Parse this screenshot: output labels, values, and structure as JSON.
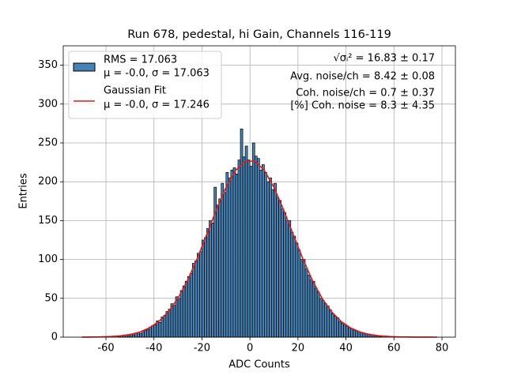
{
  "chart_data": {
    "type": "histogram",
    "title": "Run 678, pedestal, hi Gain, Channels 116-119",
    "xlabel": "ADC Counts",
    "ylabel": "Entries",
    "xlim": [
      -77.8,
      85.6
    ],
    "ylim": [
      0,
      375
    ],
    "xticks": [
      -60,
      -40,
      -20,
      0,
      20,
      40,
      60,
      80
    ],
    "yticks": [
      0,
      50,
      100,
      150,
      200,
      250,
      300,
      350
    ],
    "grid": true,
    "legend": "upper left",
    "name": "RMS = 17.063",
    "stats": "μ = -0.0, σ = 17.063",
    "color": "#4682b4",
    "edgecolor": "#000000",
    "bins": [
      -55,
      -54,
      -53,
      -52,
      -51,
      -50,
      -49,
      -48,
      -47,
      -46,
      -45,
      -44,
      -43,
      -42,
      -41,
      -40,
      -39,
      -38,
      -37,
      -36,
      -35,
      -34,
      -33,
      -32,
      -31,
      -30,
      -29,
      -28,
      -27,
      -26,
      -25,
      -24,
      -23,
      -22,
      -21,
      -20,
      -19,
      -18,
      -17,
      -16,
      -15,
      -14,
      -13,
      -12,
      -11,
      -10,
      -9,
      -8,
      -7,
      -6,
      -5,
      -4,
      -3,
      -2,
      -1,
      0,
      1,
      2,
      3,
      4,
      5,
      6,
      7,
      8,
      9,
      10,
      11,
      12,
      13,
      14,
      15,
      16,
      17,
      18,
      19,
      20,
      21,
      22,
      23,
      24,
      25,
      26,
      27,
      28,
      29,
      30,
      31,
      32,
      33,
      34,
      35,
      36,
      37,
      38,
      39,
      40,
      41,
      42,
      43,
      44,
      45,
      46,
      47,
      48,
      49,
      50,
      51,
      52,
      53,
      54,
      55
    ],
    "counts": [
      1,
      2,
      2,
      3,
      2,
      4,
      3,
      5,
      6,
      5,
      8,
      9,
      10,
      13,
      15,
      16,
      21,
      19,
      26,
      28,
      33,
      36,
      43,
      41,
      52,
      50,
      60,
      66,
      72,
      78,
      82,
      95,
      98,
      108,
      110,
      125,
      128,
      140,
      150,
      147,
      193,
      170,
      178,
      198,
      186,
      212,
      205,
      215,
      218,
      210,
      228,
      268,
      232,
      246,
      228,
      220,
      250,
      233,
      230,
      215,
      222,
      212,
      200,
      205,
      190,
      198,
      180,
      176,
      165,
      160,
      150,
      150,
      135,
      130,
      121,
      112,
      100,
      100,
      88,
      80,
      74,
      72,
      63,
      58,
      50,
      47,
      43,
      40,
      35,
      30,
      27,
      25,
      20,
      18,
      16,
      14,
      12,
      11,
      9,
      8,
      7,
      6,
      5,
      4,
      4,
      3,
      3,
      2,
      2,
      1
    ],
    "fit": {
      "type": "line",
      "name": "Gaussian Fit",
      "stats": "μ = -0.0, σ = 17.246",
      "color": "#e41a1c",
      "x": [
        -70,
        -66,
        -62,
        -58,
        -54,
        -50,
        -46,
        -42,
        -38,
        -34,
        -30,
        -26,
        -22,
        -18,
        -14,
        -10,
        -6,
        -2,
        2,
        6,
        10,
        14,
        18,
        22,
        26,
        30,
        34,
        38,
        42,
        46,
        50,
        54,
        58,
        62,
        66,
        70,
        74,
        78
      ],
      "values": [
        0.06,
        0.15,
        0.36,
        0.8,
        1.7,
        3.4,
        6.5,
        11.8,
        20.1,
        32.7,
        50.2,
        73.2,
        101.1,
        132.3,
        164.1,
        192.7,
        214.6,
        226.5,
        226.5,
        214.6,
        192.7,
        164.1,
        132.3,
        101.1,
        73.2,
        50.2,
        32.7,
        20.1,
        11.8,
        6.5,
        3.4,
        1.7,
        0.8,
        0.36,
        0.15,
        0.06,
        0.02,
        0.01
      ]
    },
    "annotations": [
      "√σᵢ² = 16.83 ± 0.17",
      "Avg. noise/ch = 8.42 ± 0.08",
      "Coh. noise/ch = 0.7 ± 0.37",
      "[%] Coh. noise = 8.3 ± 4.35"
    ]
  }
}
